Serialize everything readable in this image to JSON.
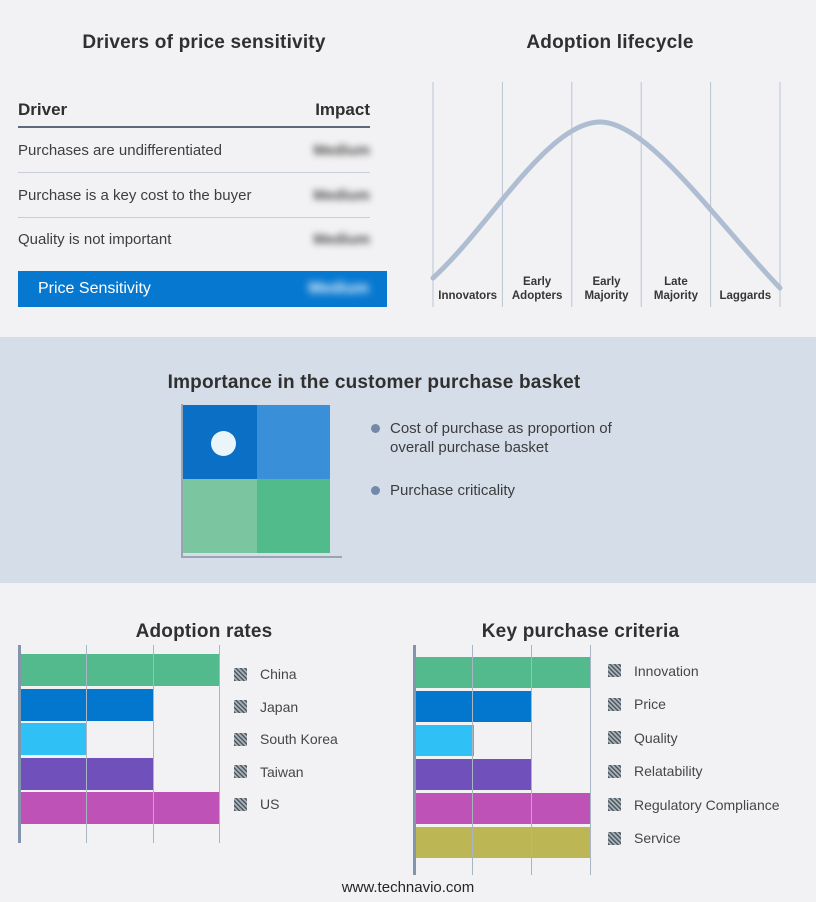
{
  "page": {
    "background": "#f2f2f4",
    "band_background": "#d4dde8"
  },
  "footer": {
    "url": "www.technavio.com"
  },
  "basket_panel": {
    "title": "Importance in the customer purchase basket",
    "bullets": [
      "Cost of purchase as proportion of overall purchase basket",
      "Purchase criticality"
    ],
    "quadrant": {
      "top_left_color": "#0b6fc6",
      "top_right_color": "#3990d8",
      "bottom_left_color": "#7cc5a1",
      "bottom_right_color": "#52bb8b",
      "marker": "white dot in top-left quadrant"
    }
  },
  "chart_data": [
    {
      "type": "table",
      "title": "Drivers of price sensitivity",
      "columns": [
        "Driver",
        "Impact"
      ],
      "rows": [
        {
          "driver": "Purchases are undifferentiated",
          "impact": "Medium",
          "impact_redacted": true
        },
        {
          "driver": "Purchase is a key cost to the buyer",
          "impact": "Medium",
          "impact_redacted": true
        },
        {
          "driver": "Quality is not important",
          "impact": "Medium",
          "impact_redacted": true
        }
      ],
      "highlight_row": {
        "label": "Price Sensitivity",
        "impact": "Medium",
        "impact_redacted": true,
        "bg": "#0778d0"
      }
    },
    {
      "type": "line",
      "title": "Adoption lifecycle",
      "categories": [
        "Innovators",
        "Early Adopters",
        "Early Majority",
        "Late Majority",
        "Laggards"
      ],
      "shape": "bell curve rising from Innovators, peaking at Early Majority, falling through Laggards",
      "curve_color": "#aebdd1",
      "gridlines": 6
    },
    {
      "type": "bar",
      "orientation": "horizontal",
      "title": "Adoption rates",
      "categories": [
        "China",
        "Japan",
        "South Korea",
        "Taiwan",
        "US"
      ],
      "values": [
        3,
        2,
        1,
        2,
        3
      ],
      "xlim": [
        0,
        3
      ],
      "colors": [
        "#52ba8c",
        "#0277cd",
        "#2fc0f5",
        "#7051bb",
        "#bf52b7"
      ],
      "legend_position": "right",
      "legend_swatch_style": "hatched (redacted)"
    },
    {
      "type": "bar",
      "orientation": "horizontal",
      "title": "Key purchase criteria",
      "categories": [
        "Innovation",
        "Price",
        "Quality",
        "Relatability",
        "Regulatory Compliance",
        "Service"
      ],
      "values": [
        3,
        2,
        1,
        2,
        3,
        3
      ],
      "xlim": [
        0,
        3
      ],
      "colors": [
        "#52ba8c",
        "#0277cd",
        "#2fc0f5",
        "#7051bb",
        "#bf52b7",
        "#bcb754"
      ],
      "legend_position": "right",
      "legend_swatch_style": "hatched (redacted)"
    }
  ]
}
